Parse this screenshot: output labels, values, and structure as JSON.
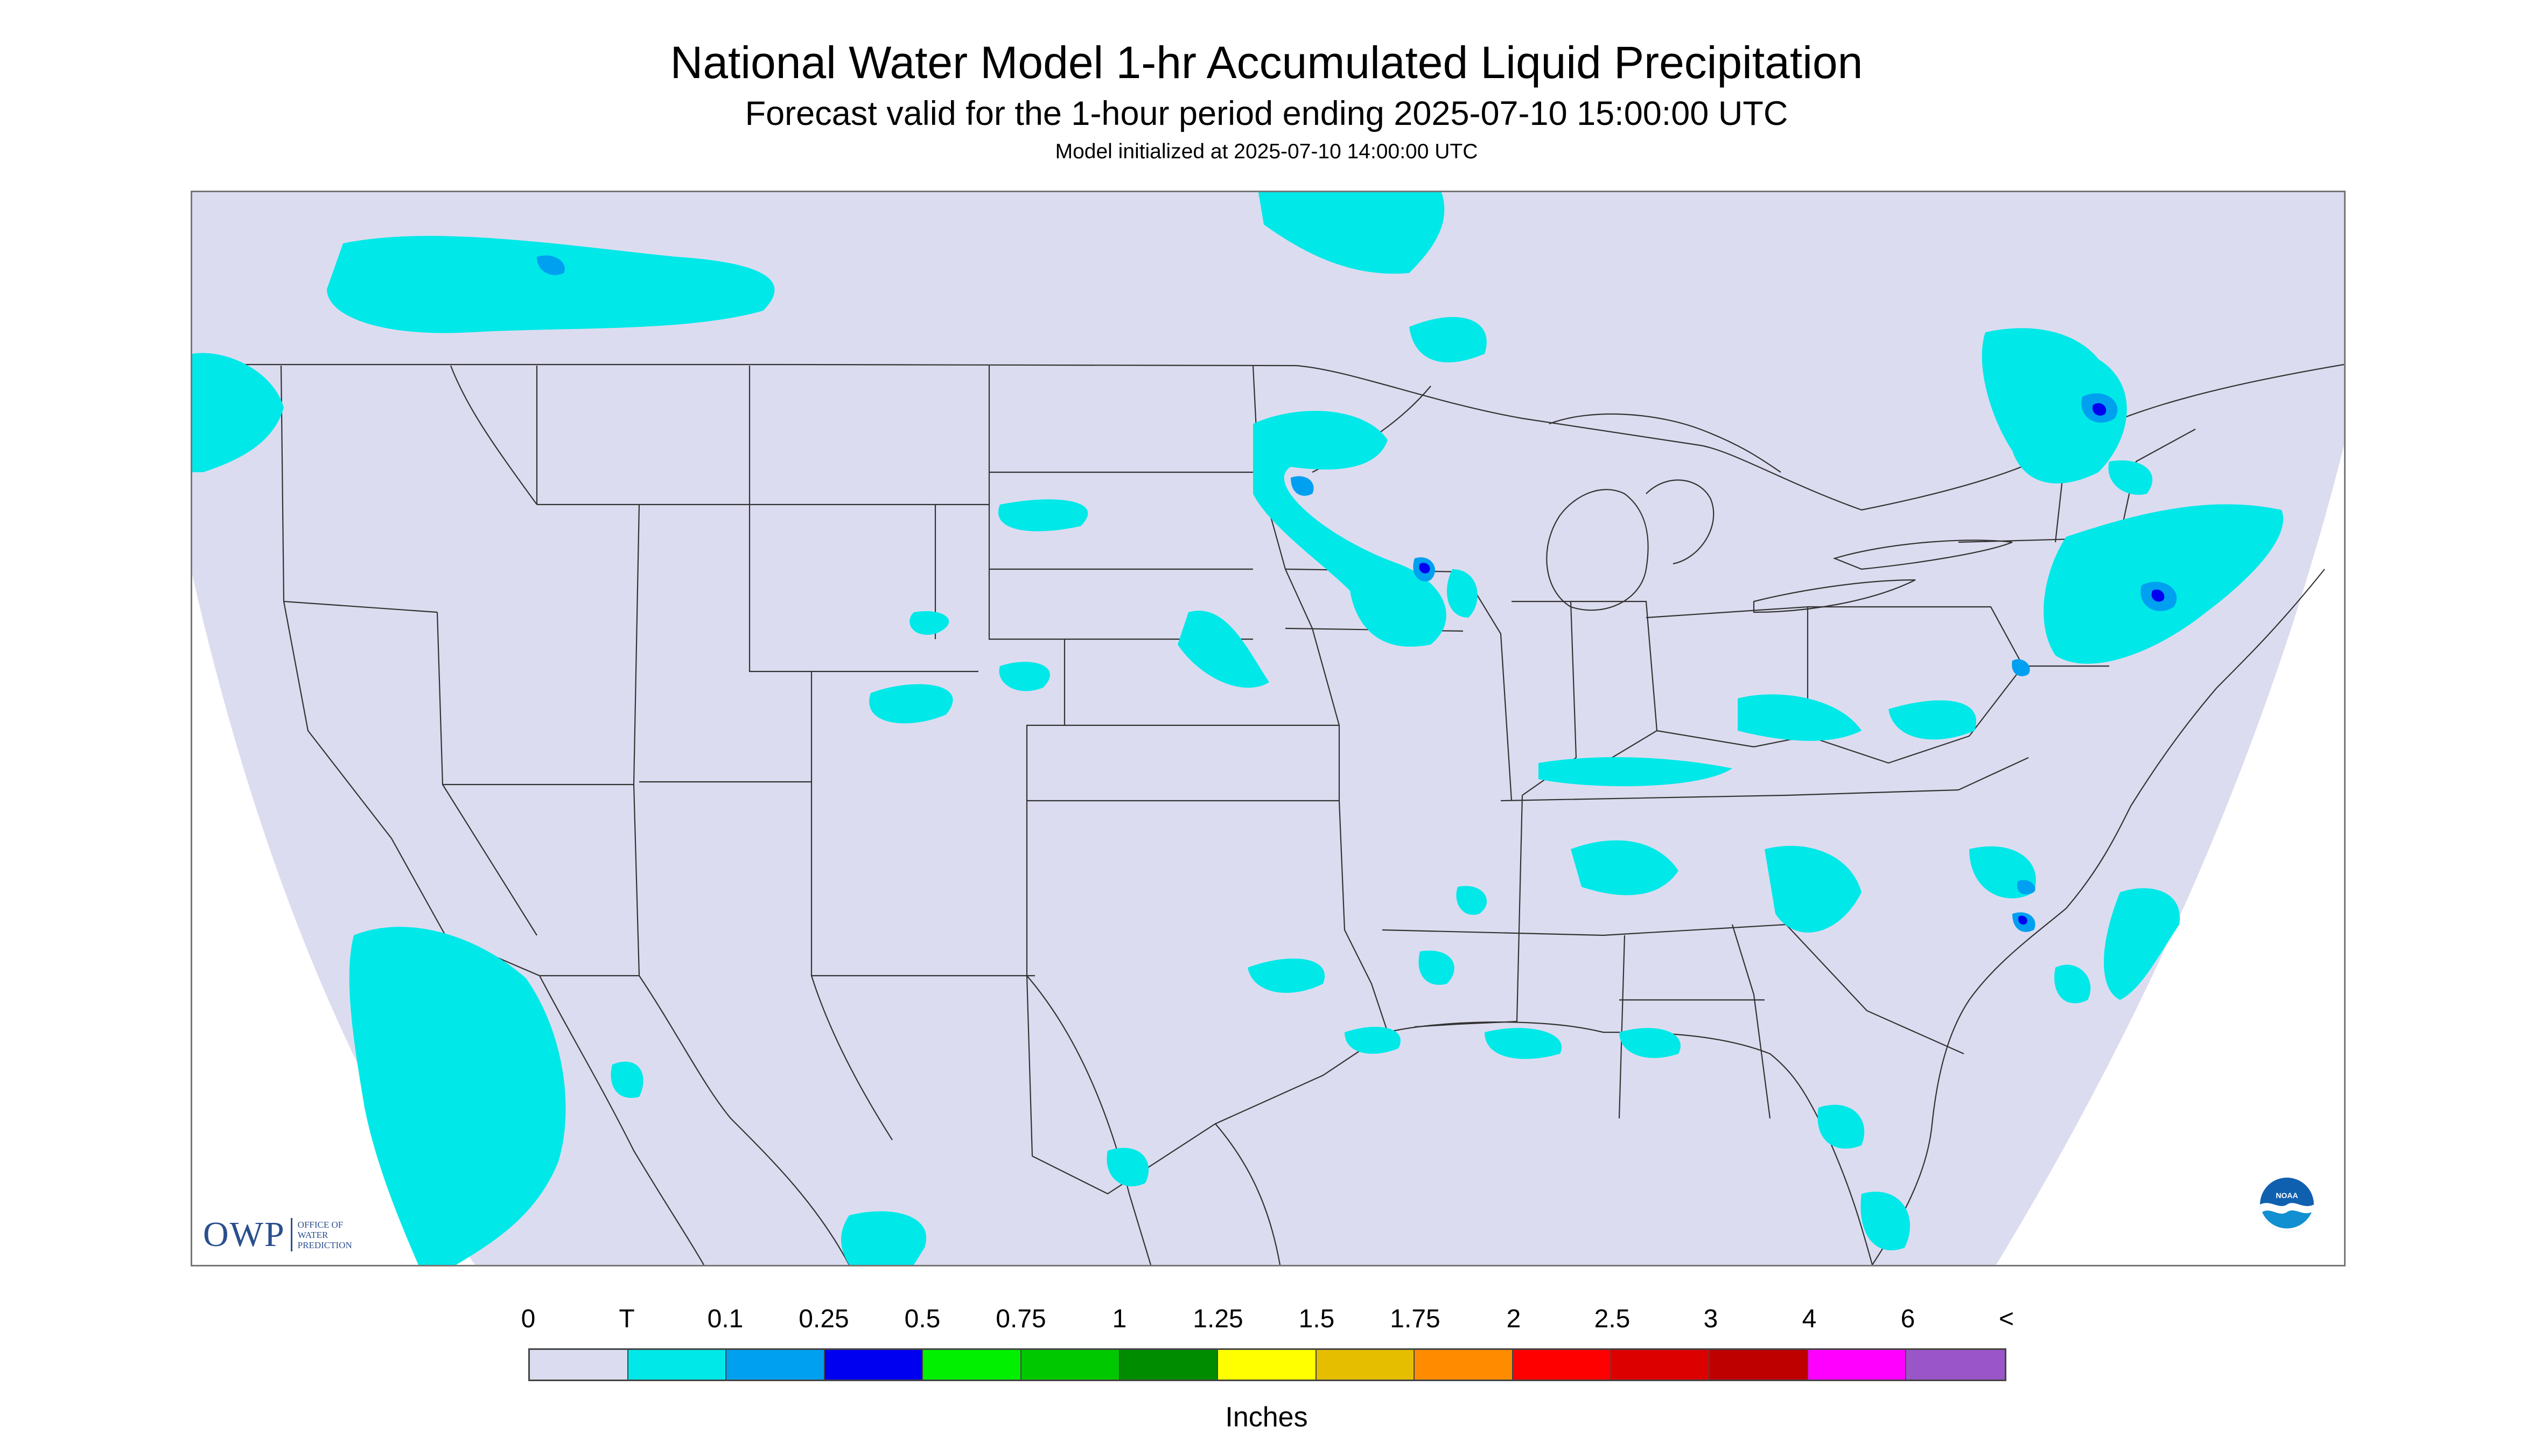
{
  "title": "National Water Model 1-hr Accumulated Liquid Precipitation",
  "subtitle": "Forecast valid for the 1-hour period ending 2025-07-10 15:00:00 UTC",
  "init_line": "Model initialized at 2025-07-10 14:00:00 UTC",
  "logos": {
    "owp": "OWP",
    "owp_sub": [
      "OFFICE OF",
      "WATER",
      "PREDICTION"
    ],
    "noaa": "NOAA"
  },
  "legend": {
    "labels": [
      "0",
      "T",
      "0.1",
      "0.25",
      "0.5",
      "0.75",
      "1",
      "1.25",
      "1.5",
      "1.75",
      "2",
      "2.5",
      "3",
      "4",
      "6",
      "<"
    ],
    "colors": [
      "#dcdcf0",
      "#00e8e8",
      "#00a0f0",
      "#0000f0",
      "#00f000",
      "#00c800",
      "#008c00",
      "#ffff00",
      "#e6be00",
      "#ff8c00",
      "#ff0000",
      "#dc0000",
      "#be0000",
      "#ff00ff",
      "#9a55c8"
    ],
    "units": "Inches"
  },
  "map": {
    "background_color": "#ffffff",
    "domain_color": "#dcdcf0",
    "boundary_color": "#333333",
    "precip_trace_color": "#00e8e8",
    "precip_light_color": "#00a0f0",
    "precip_moderate_color": "#0000f0"
  }
}
